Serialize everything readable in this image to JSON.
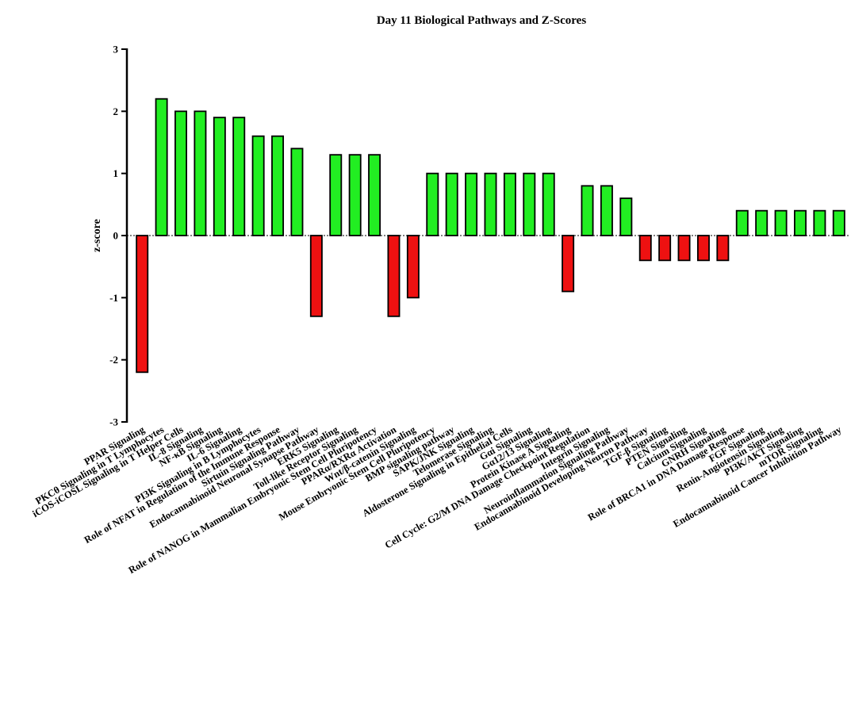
{
  "chart_data": {
    "type": "bar",
    "title": "Day 11 Biological Pathways and Z-Scores",
    "xlabel": "",
    "ylabel": "z-score",
    "ylim": [
      -3,
      3
    ],
    "yticks": [
      "-3",
      "-2",
      "-1",
      "0",
      "1",
      "2",
      "3"
    ],
    "grid": false,
    "colors": {
      "positive": "#22ee22",
      "negative": "#ee1111",
      "stroke": "#000000"
    },
    "categories": [
      "PPAR Signaling",
      "PKCθ Signaling in T Lymphocytes",
      "iCOS-iCOSL Signaling in T Helper Cells",
      "IL-8 Signaling",
      "NF-κB Signaling",
      "IL-6 Signaling",
      "PI3K Signaling in B Lymphocytes",
      "Role of NFAT in Regulation of the Immune Response",
      "Sirtuin Signaling Pathway",
      "Endocannabinoid Neuronal Synapse Pathway",
      "ERK5 Signaling",
      "Toll-like Receptor Signaling",
      "Role of NANOG in Mammalian Embryonic Stem Cell Pluripotency",
      "PPARα/RXRα Activation",
      "Wnt/β-catenin Signaling",
      "Mouse Embryonic Stem Cell Pluripotency",
      "BMP signaling pathway",
      "SAPK/JNK Signaling",
      "Telomerase Signaling",
      "Aldosterone Signaling in Epithelial Cells",
      "Gαi Signaling",
      "Gα12/13 Signaling",
      "Protein Kinase A Signaling",
      "Cell Cycle: G2/M DNA Damage Checkpoint Regulation",
      "Integrin Signaling",
      "Neuroinflammation Signaling Pathway",
      "Endocannabinoid Developing Neuron Pathway",
      "TGF-β Signaling",
      "PTEN Signaling",
      "Calcium Signaling",
      "GNRH Signaling",
      "Role of BRCA1 in DNA Damage Response",
      "FGF Signaling",
      "Renin-Angiotensin Signaling",
      "PI3K/AKT Signaling",
      "mTOR Signaling",
      "Endocannabinoid Cancer Inhibition Pathway"
    ],
    "values": [
      -2.2,
      2.2,
      2.0,
      2.0,
      1.9,
      1.9,
      1.6,
      1.6,
      1.4,
      -1.3,
      1.3,
      1.3,
      1.3,
      -1.3,
      -1.0,
      1.0,
      1.0,
      1.0,
      1.0,
      1.0,
      1.0,
      1.0,
      -0.9,
      0.8,
      0.8,
      0.6,
      -0.4,
      -0.4,
      -0.4,
      -0.4,
      -0.4,
      0.4,
      0.4,
      0.4,
      0.4,
      0.4,
      0.4
    ]
  }
}
